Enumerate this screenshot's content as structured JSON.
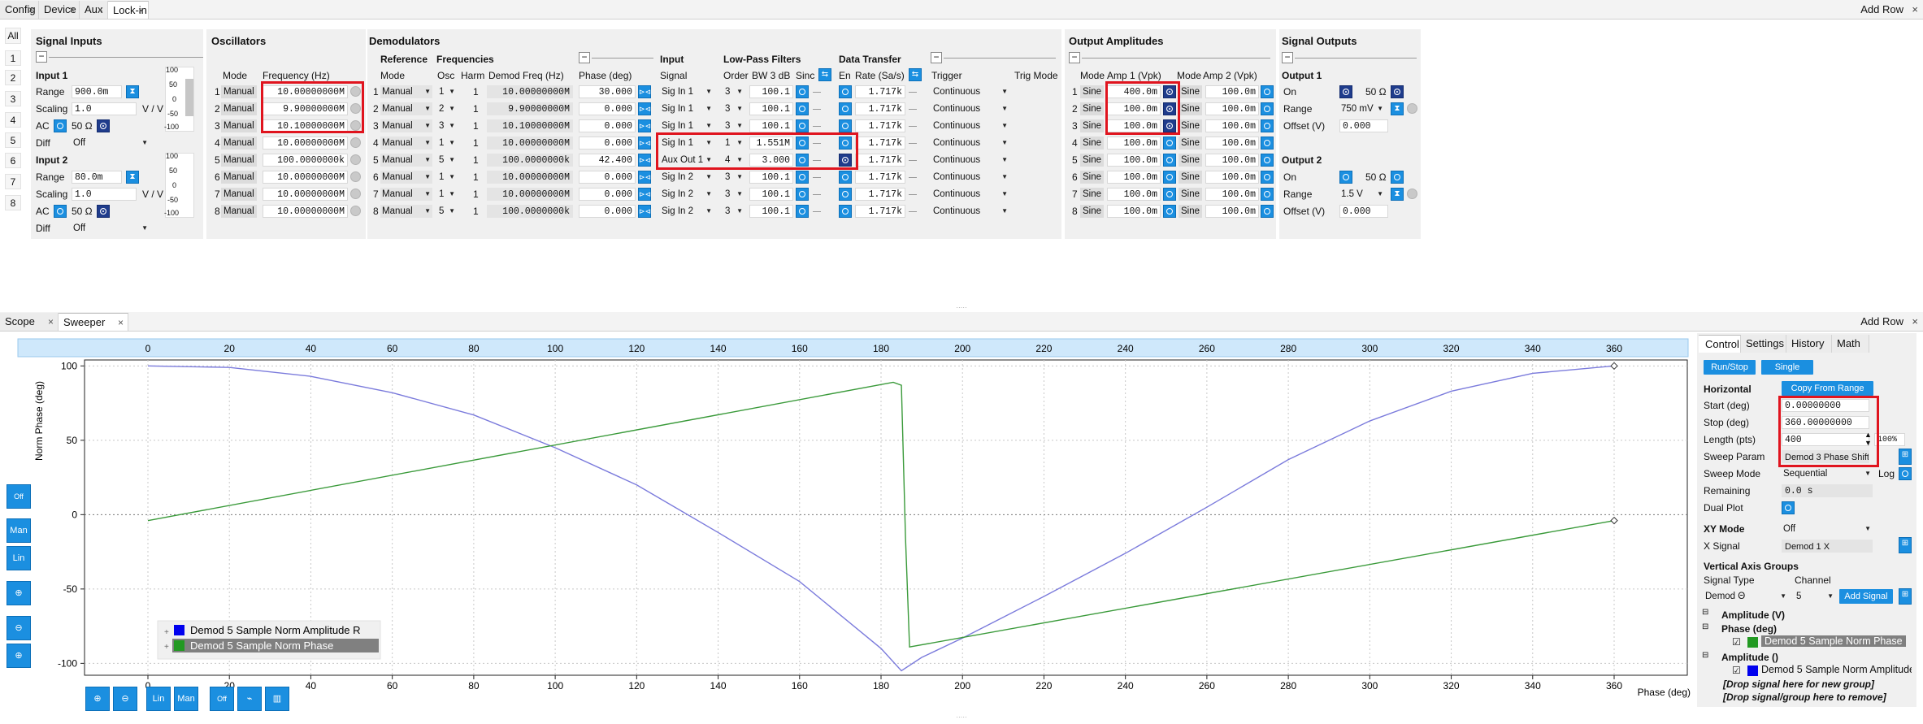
{
  "top_tabs": [
    "Config",
    "Device",
    "Aux",
    "Lock-in"
  ],
  "bottom_tabs": [
    "Scope",
    "Sweeper"
  ],
  "add_row": "Add Row",
  "close_glyph": "×",
  "vtabs": [
    "All",
    "1",
    "2",
    "3",
    "4",
    "5",
    "6",
    "7",
    "8"
  ],
  "sections": {
    "signal_inputs": "Signal Inputs",
    "oscillators": "Oscillators",
    "demodulators": "Demodulators",
    "output_amplitudes": "Output Amplitudes",
    "signal_outputs": "Signal Outputs"
  },
  "signal_inputs": {
    "input1": "Input 1",
    "input2": "Input 2",
    "range_label": "Range",
    "scaling_label": "Scaling",
    "ac_label": "AC",
    "diff_label": "Diff",
    "in1_range": "900.0m",
    "in1_scaling": "1.0",
    "in1_unit": "V / V",
    "in1_ohm": "50 Ω",
    "in1_diff": "Off",
    "in2_range": "80.0m",
    "in2_scaling": "1.0",
    "in2_unit": "V / V",
    "in2_ohm": "50 Ω",
    "in2_diff": "Off",
    "bar_ticks": [
      "100",
      "50",
      "0",
      "-50",
      "-100"
    ]
  },
  "osc": {
    "col_mode": "Mode",
    "col_freq": "Frequency (Hz)",
    "rows": [
      {
        "n": "1",
        "mode": "Manual",
        "freq": "10.00000000M"
      },
      {
        "n": "2",
        "mode": "Manual",
        "freq": "9.90000000M"
      },
      {
        "n": "3",
        "mode": "Manual",
        "freq": "10.10000000M"
      },
      {
        "n": "4",
        "mode": "Manual",
        "freq": "10.00000000M"
      },
      {
        "n": "5",
        "mode": "Manual",
        "freq": "100.0000000k"
      },
      {
        "n": "6",
        "mode": "Manual",
        "freq": "10.00000000M"
      },
      {
        "n": "7",
        "mode": "Manual",
        "freq": "10.00000000M"
      },
      {
        "n": "8",
        "mode": "Manual",
        "freq": "10.00000000M"
      }
    ]
  },
  "demod": {
    "h_reference": "Reference",
    "h_frequencies": "Frequencies",
    "h_input": "Input",
    "h_lpf": "Low-Pass Filters",
    "h_transfer": "Data Transfer",
    "c_mode": "Mode",
    "c_osc": "Osc",
    "c_harm": "Harm",
    "c_freq": "Demod Freq (Hz)",
    "c_phase": "Phase (deg)",
    "c_signal": "Signal",
    "c_order": "Order",
    "c_bw": "BW 3 dB",
    "c_sinc": "Sinc",
    "c_en": "En",
    "c_rate": "Rate (Sa/s)",
    "c_trigger": "Trigger",
    "c_trigmode": "Trig Mode",
    "rows": [
      {
        "n": "1",
        "mode": "Manual",
        "osc": "1",
        "harm": "1",
        "freq": "10.00000000M",
        "phase": "30.000",
        "signal": "Sig In 1",
        "order": "3",
        "bw": "100.1",
        "rate": "1.717k",
        "trigger": "Continuous"
      },
      {
        "n": "2",
        "mode": "Manual",
        "osc": "2",
        "harm": "1",
        "freq": "9.90000000M",
        "phase": "0.000",
        "signal": "Sig In 1",
        "order": "3",
        "bw": "100.1",
        "rate": "1.717k",
        "trigger": "Continuous"
      },
      {
        "n": "3",
        "mode": "Manual",
        "osc": "3",
        "harm": "1",
        "freq": "10.10000000M",
        "phase": "0.000",
        "signal": "Sig In 1",
        "order": "3",
        "bw": "100.1",
        "rate": "1.717k",
        "trigger": "Continuous"
      },
      {
        "n": "4",
        "mode": "Manual",
        "osc": "1",
        "harm": "1",
        "freq": "10.00000000M",
        "phase": "0.000",
        "signal": "Sig In 1",
        "order": "1",
        "bw": "1.551M",
        "rate": "1.717k",
        "trigger": "Continuous"
      },
      {
        "n": "5",
        "mode": "Manual",
        "osc": "5",
        "harm": "1",
        "freq": "100.0000000k",
        "phase": "42.400",
        "signal": "Aux Out 1",
        "order": "4",
        "bw": "3.000",
        "rate": "1.717k",
        "trigger": "Continuous"
      },
      {
        "n": "6",
        "mode": "Manual",
        "osc": "1",
        "harm": "1",
        "freq": "10.00000000M",
        "phase": "0.000",
        "signal": "Sig In 2",
        "order": "3",
        "bw": "100.1",
        "rate": "1.717k",
        "trigger": "Continuous"
      },
      {
        "n": "7",
        "mode": "Manual",
        "osc": "1",
        "harm": "1",
        "freq": "10.00000000M",
        "phase": "0.000",
        "signal": "Sig In 2",
        "order": "3",
        "bw": "100.1",
        "rate": "1.717k",
        "trigger": "Continuous"
      },
      {
        "n": "8",
        "mode": "Manual",
        "osc": "5",
        "harm": "1",
        "freq": "100.0000000k",
        "phase": "0.000",
        "signal": "Sig In 2",
        "order": "3",
        "bw": "100.1",
        "rate": "1.717k",
        "trigger": "Continuous"
      }
    ]
  },
  "outamp": {
    "c_mode1": "Mode",
    "c_amp1": "Amp 1 (Vpk)",
    "c_mode2": "Mode",
    "c_amp2": "Amp 2 (Vpk)",
    "rows": [
      {
        "n": "1",
        "m1": "Sine",
        "a1": "400.0m",
        "m2": "Sine",
        "a2": "100.0m"
      },
      {
        "n": "2",
        "m1": "Sine",
        "a1": "100.0m",
        "m2": "Sine",
        "a2": "100.0m"
      },
      {
        "n": "3",
        "m1": "Sine",
        "a1": "100.0m",
        "m2": "Sine",
        "a2": "100.0m"
      },
      {
        "n": "4",
        "m1": "Sine",
        "a1": "100.0m",
        "m2": "Sine",
        "a2": "100.0m"
      },
      {
        "n": "5",
        "m1": "Sine",
        "a1": "100.0m",
        "m2": "Sine",
        "a2": "100.0m"
      },
      {
        "n": "6",
        "m1": "Sine",
        "a1": "100.0m",
        "m2": "Sine",
        "a2": "100.0m"
      },
      {
        "n": "7",
        "m1": "Sine",
        "a1": "100.0m",
        "m2": "Sine",
        "a2": "100.0m"
      },
      {
        "n": "8",
        "m1": "Sine",
        "a1": "100.0m",
        "m2": "Sine",
        "a2": "100.0m"
      }
    ]
  },
  "sigout": {
    "output1": "Output 1",
    "output2": "Output 2",
    "on": "On",
    "range": "Range",
    "offset": "Offset (V)",
    "o1_ohm": "50 Ω",
    "o1_range": "750 mV",
    "o1_offset": "0.000",
    "o2_ohm": "50 Ω",
    "o2_range": "1.5 V",
    "o2_offset": "0.000"
  },
  "sweeper": {
    "tabs": [
      "Control",
      "Settings",
      "History",
      "Math"
    ],
    "run_stop": "Run/Stop",
    "single": "Single",
    "horizontal": "Horizontal",
    "copy_from_range": "Copy From Range",
    "start_label": "Start (deg)",
    "start": "0.00000000",
    "stop_label": "Stop (deg)",
    "stop": "360.00000000",
    "length_label": "Length (pts)",
    "length": "400",
    "pct": "100%",
    "param_label": "Sweep Param",
    "param": "Demod 3 Phase Shift",
    "mode_label": "Sweep Mode",
    "mode": "Sequential",
    "log": "Log",
    "remaining_label": "Remaining",
    "remaining": "0.0 s",
    "dual_label": "Dual Plot",
    "xy_title": "XY Mode",
    "xy_mode": "Off",
    "xsig_label": "X Signal",
    "xsig": "Demod 1 X",
    "vag_title": "Vertical Axis Groups",
    "sigtype_label": "Signal Type",
    "channel_label": "Channel",
    "sigtype": "Demod Θ",
    "channel": "5",
    "add_signal": "Add Signal",
    "tree": {
      "g1": "Amplitude (V)",
      "g2": "Phase (deg)",
      "g2_item": "Demod 5 Sample Norm Phase",
      "g3": "Amplitude ()",
      "g3_item": "Demod 5 Sample Norm Amplitude R",
      "drop1": "[Drop signal here for new group]",
      "drop2": "[Drop signal/group here to remove]"
    },
    "side_buttons": [
      "Off",
      "Man",
      "Lin"
    ],
    "bottom_buttons": [
      "Lin",
      "Man",
      "Off"
    ]
  },
  "chart_data": {
    "type": "line",
    "xlabel": "Phase (deg)",
    "ylabel": "Norm Phase (deg)",
    "xlim": [
      -15,
      365
    ],
    "ylim": [
      -108,
      104
    ],
    "x_ticks": [
      0,
      20,
      40,
      60,
      80,
      100,
      120,
      140,
      160,
      180,
      200,
      220,
      240,
      260,
      280,
      300,
      320,
      340,
      360
    ],
    "top_ticks": [
      0,
      20,
      40,
      60,
      80,
      100,
      120,
      140,
      160,
      180,
      200,
      220,
      240,
      260,
      280,
      300,
      320,
      340,
      360
    ],
    "y_ticks": [
      100,
      50,
      0,
      -50,
      -100
    ],
    "colors": {
      "amp": "#7b7bdc",
      "phase": "#3a9a3a",
      "legend_amp": "#0000ee",
      "legend_phase": "#229922"
    },
    "series": [
      {
        "name": "Demod 5 Sample Norm Amplitude R",
        "x": [
          0,
          20,
          40,
          60,
          80,
          100,
          120,
          140,
          160,
          180,
          185,
          190,
          200,
          220,
          240,
          260,
          280,
          300,
          320,
          340,
          360
        ],
        "y": [
          100,
          99,
          93,
          82,
          67,
          45,
          20,
          -12,
          -45,
          -90,
          -105,
          -96,
          -83,
          -55,
          -26,
          5,
          37,
          63,
          83,
          95,
          100
        ]
      },
      {
        "name": "Demod 5 Sample Norm Phase",
        "x": [
          0,
          183,
          185,
          186,
          187,
          360
        ],
        "y": [
          -4,
          89,
          87,
          -15,
          -89,
          -4
        ]
      }
    ]
  }
}
